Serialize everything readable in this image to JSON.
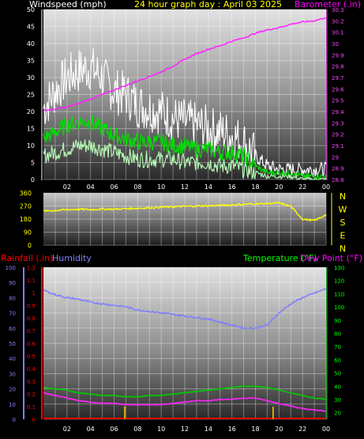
{
  "header": {
    "wind_title": "Windspeed (mph)",
    "graph_title": "24 hour graph day : April 03 2025",
    "baro_title": "Barometer (.in)"
  },
  "lower_header": {
    "rain_title": "Rainfall (.in)",
    "humidity_title": "Humidity",
    "temp_title": "Temperature (°F)",
    "dew_title": "Dew Point (°F)"
  },
  "colors": {
    "wind_gust": "#ffffff",
    "wind_avg": "#00dd00",
    "wind_low": "#b8ffb8",
    "barometer": "#ff22ff",
    "direction": "#ffff00",
    "humidity": "#7f7fff",
    "temperature": "#00cc00",
    "dewpoint": "#ff22ff",
    "rainfall": "#ff0000",
    "rain_bars": "#ffcc00",
    "wind_title": "#ffffff",
    "baro_title": "#ff00ff",
    "graph_title": "#ffff00",
    "dir_axis": "#ffff00",
    "humidity_title": "#8080ff",
    "temp_title": "#00ff00"
  },
  "chart_data": [
    {
      "type": "line",
      "panel": "wind-barometer",
      "x_ticks": [
        "02",
        "04",
        "06",
        "08",
        "10",
        "12",
        "14",
        "16",
        "18",
        "20",
        "22",
        "00"
      ],
      "x_range_hours": [
        0,
        24
      ],
      "y_left": {
        "label": "Windspeed (mph)",
        "ticks": [
          "0",
          "5",
          "10",
          "15",
          "20",
          "25",
          "30",
          "35",
          "40",
          "45",
          "50"
        ],
        "range": [
          0,
          50
        ]
      },
      "y_right": {
        "label": "Barometer (.in)",
        "ticks": [
          "28.8",
          "28.9",
          "29",
          "29.1",
          "29.2",
          "29.3",
          "29.4",
          "29.5",
          "29.6",
          "29.7",
          "29.8",
          "29.9",
          "30",
          "30.1",
          "30.2",
          "30.3"
        ],
        "range": [
          28.8,
          30.3
        ]
      },
      "series": [
        {
          "name": "",
          "axis": "left",
          "style": "gust",
          "x": [
            0,
            1,
            2,
            3,
            4,
            5,
            6,
            7,
            8,
            9,
            10,
            11,
            12,
            13,
            14,
            15,
            16,
            17,
            18,
            19,
            20,
            21,
            22,
            23,
            24
          ],
          "y": [
            21,
            26,
            30,
            32,
            33,
            30,
            26,
            25,
            22,
            21,
            20,
            18,
            17,
            16,
            15,
            14,
            13,
            11,
            7,
            4,
            3,
            3,
            3,
            3,
            3
          ]
        },
        {
          "name": "",
          "axis": "left",
          "style": "avg",
          "x": [
            0,
            1,
            2,
            3,
            4,
            5,
            6,
            7,
            8,
            9,
            10,
            11,
            12,
            13,
            14,
            15,
            16,
            17,
            18,
            19,
            20,
            21,
            22,
            23,
            24
          ],
          "y": [
            12,
            14,
            16,
            17,
            17,
            15,
            13,
            12,
            11,
            11,
            11,
            10,
            10,
            9,
            9,
            8,
            8,
            7,
            4,
            2,
            2,
            2,
            1,
            1,
            1
          ]
        },
        {
          "name": "",
          "axis": "left",
          "style": "low",
          "x": [
            0,
            1,
            2,
            3,
            4,
            5,
            6,
            7,
            8,
            9,
            10,
            11,
            12,
            13,
            14,
            15,
            16,
            17,
            18,
            19,
            20,
            21,
            22,
            23,
            24
          ],
          "y": [
            7,
            8,
            9,
            10,
            10,
            9,
            8,
            7,
            6,
            6,
            6,
            6,
            5,
            5,
            5,
            4,
            4,
            3,
            2,
            1,
            1,
            1,
            0,
            0,
            0
          ]
        },
        {
          "name": "",
          "axis": "right",
          "style": "barometer",
          "x": [
            0,
            1,
            2,
            3,
            4,
            5,
            6,
            7,
            8,
            9,
            10,
            11,
            12,
            13,
            14,
            15,
            16,
            17,
            18,
            19,
            20,
            21,
            22,
            23,
            24
          ],
          "y": [
            29.41,
            29.42,
            29.44,
            29.47,
            29.51,
            29.55,
            29.59,
            29.63,
            29.67,
            29.71,
            29.75,
            29.8,
            29.86,
            29.91,
            29.95,
            29.98,
            30.02,
            30.05,
            30.09,
            30.12,
            30.14,
            30.17,
            30.19,
            30.2,
            30.23
          ]
        }
      ]
    },
    {
      "type": "line",
      "panel": "wind-direction",
      "y_left": {
        "ticks": [
          "0",
          "90",
          "180",
          "270",
          "360"
        ],
        "range": [
          0,
          360
        ]
      },
      "y_right_labels": [
        "N",
        "W",
        "S",
        "E",
        "N"
      ],
      "series": [
        {
          "name": "",
          "style": "direction",
          "x": [
            0,
            1,
            2,
            3,
            4,
            5,
            6,
            7,
            8,
            9,
            10,
            11,
            12,
            13,
            14,
            15,
            16,
            17,
            18,
            19,
            20,
            21,
            22,
            23,
            24
          ],
          "y": [
            235,
            240,
            245,
            248,
            245,
            250,
            248,
            252,
            255,
            258,
            262,
            265,
            268,
            270,
            272,
            275,
            278,
            282,
            285,
            288,
            290,
            268,
            180,
            170,
            210
          ]
        }
      ]
    },
    {
      "type": "line",
      "panel": "humidity-temperature",
      "x_ticks": [
        "02",
        "04",
        "06",
        "08",
        "10",
        "12",
        "14",
        "16",
        "18",
        "20",
        "22",
        "00"
      ],
      "x_range_hours": [
        0,
        24
      ],
      "y_humidity": {
        "label": "Humidity",
        "ticks": [
          "0",
          "10",
          "20",
          "30",
          "40",
          "50",
          "60",
          "70",
          "80",
          "90",
          "100"
        ],
        "range": [
          0,
          100
        ]
      },
      "y_rain": {
        "label": "Rainfall (.in)",
        "ticks": [
          "0",
          "0.1",
          "0.2",
          "0.3",
          "0.4",
          "0.5",
          "0.6",
          "0.7",
          "0.8",
          "0.9",
          "1",
          "1.1",
          "1.2"
        ],
        "range": [
          0,
          1.2
        ]
      },
      "y_temp": {
        "label": "Temperature (°F)",
        "ticks": [
          "20",
          "30",
          "40",
          "50",
          "60",
          "70",
          "80",
          "90",
          "100",
          "110",
          "120",
          "130"
        ],
        "range": [
          15,
          130
        ]
      },
      "series": [
        {
          "name": "Humidity",
          "axis": "humidity",
          "x": [
            0,
            1,
            2,
            3,
            4,
            5,
            6,
            7,
            8,
            9,
            10,
            11,
            12,
            13,
            14,
            15,
            16,
            17,
            18,
            19,
            20,
            21,
            22,
            23,
            24
          ],
          "y": [
            85,
            82,
            80,
            79,
            77,
            76,
            75,
            74,
            72,
            71,
            70,
            69,
            68,
            67,
            66,
            64,
            62,
            60,
            60,
            62,
            70,
            76,
            80,
            83,
            86
          ]
        },
        {
          "name": "Temperature (°F)",
          "axis": "temp",
          "x": [
            0,
            1,
            2,
            3,
            4,
            5,
            6,
            7,
            8,
            9,
            10,
            11,
            12,
            13,
            14,
            15,
            16,
            17,
            18,
            19,
            20,
            21,
            22,
            23,
            24
          ],
          "y": [
            39,
            38,
            37,
            35,
            34,
            33,
            33,
            32,
            32,
            33,
            33,
            34,
            35,
            36,
            37,
            38,
            39,
            40,
            40,
            39,
            37,
            35,
            33,
            31,
            30
          ]
        },
        {
          "name": "Dew Point (°F)",
          "axis": "temp",
          "x": [
            0,
            1,
            2,
            3,
            4,
            5,
            6,
            7,
            8,
            9,
            10,
            11,
            12,
            13,
            14,
            15,
            16,
            17,
            18,
            19,
            20,
            21,
            22,
            23,
            24
          ],
          "y": [
            35,
            33,
            31,
            29,
            28,
            27,
            27,
            26,
            26,
            26,
            26,
            27,
            28,
            29,
            29,
            30,
            30,
            31,
            31,
            29,
            27,
            25,
            23,
            22,
            21
          ]
        },
        {
          "name": "Rainfall (.in)",
          "axis": "rain",
          "x": [
            0,
            24
          ],
          "y": [
            0,
            0
          ]
        },
        {
          "name": "",
          "axis": "rain",
          "style": "rain-markers",
          "x": [
            6.9,
            19.5
          ],
          "y": [
            0.1,
            0.1
          ]
        }
      ]
    }
  ]
}
